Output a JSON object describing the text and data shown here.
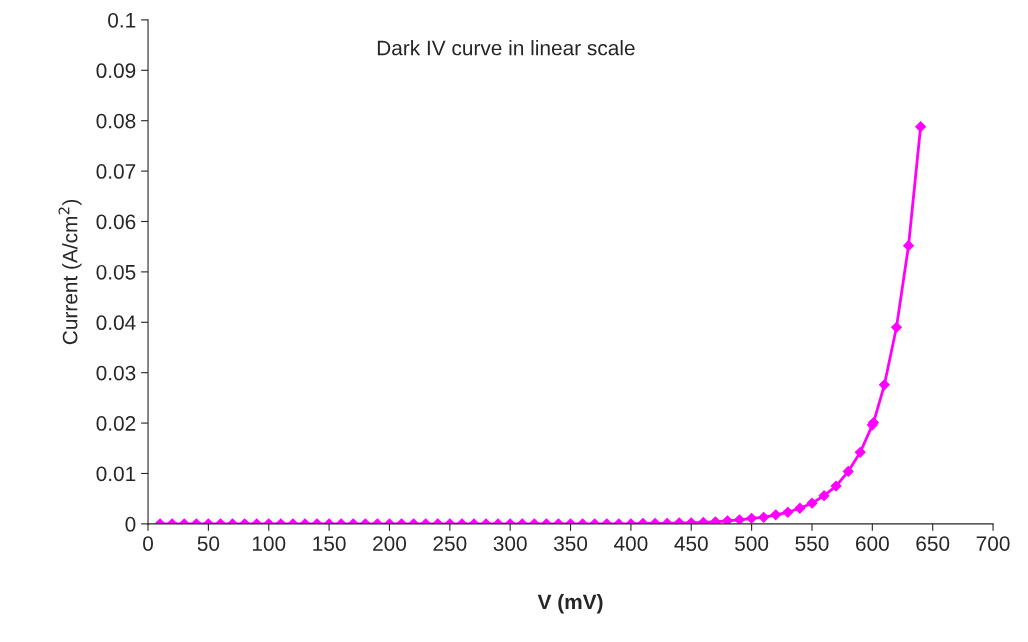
{
  "chart_data": {
    "type": "line",
    "xlabel": "V (mV)",
    "ylabel": "Current (A/cm$^{2}$)",
    "annotations": [
      "Dark IV curve in linear scale"
    ],
    "series": [
      {
        "color": "#ff00ff",
        "x": [
          10,
          20,
          30,
          40,
          50,
          60,
          70,
          80,
          90,
          100,
          110,
          120,
          130,
          140,
          150,
          160,
          170,
          180,
          190,
          200,
          210,
          220,
          230,
          240,
          250,
          260,
          270,
          280,
          290,
          300,
          310,
          320,
          330,
          340,
          350,
          360,
          370,
          380,
          390,
          400,
          410,
          420,
          430,
          440,
          450,
          460,
          470,
          480,
          490,
          500,
          510,
          520,
          530,
          540,
          550,
          560,
          570,
          580,
          590,
          600,
          601,
          610,
          620,
          630,
          640
        ],
        "values": [
          0,
          0,
          0,
          0,
          0,
          0,
          0,
          0,
          0,
          0,
          0,
          0,
          0,
          0,
          0,
          0,
          0,
          0,
          0,
          0,
          0,
          0,
          0,
          0,
          0,
          0,
          0,
          0,
          0,
          0,
          0,
          0,
          0,
          0,
          0,
          0,
          0,
          0,
          0,
          0,
          0.0001,
          0.0001,
          0.0001,
          0.0002,
          0.0002,
          0.0003,
          0.0004,
          0.0006,
          0.0008,
          0.0011,
          0.0013,
          0.0018,
          0.0023,
          0.0031,
          0.0041,
          0.0056,
          0.0075,
          0.0104,
          0.0142,
          0.0196,
          0.0201,
          0.0276,
          0.039,
          0.0552,
          0.0788
        ]
      }
    ],
    "xlim": [
      0,
      700
    ],
    "xticks": [
      0,
      50,
      100,
      150,
      200,
      250,
      300,
      350,
      400,
      450,
      500,
      550,
      600,
      650,
      700
    ],
    "ylim": [
      0,
      0.1
    ],
    "yticks": [
      0,
      0.01,
      0.02,
      0.03,
      0.04,
      0.05,
      0.06,
      0.07,
      0.08,
      0.09,
      0.1
    ],
    "marker": "diamond",
    "line_style": "solid",
    "grid": false,
    "legend": false
  }
}
